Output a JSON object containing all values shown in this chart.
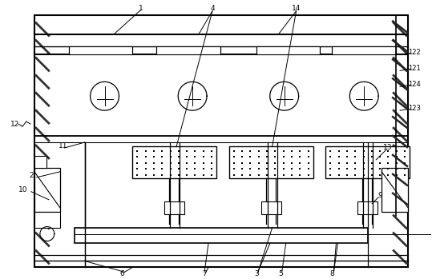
{
  "bg_color": "#ffffff",
  "lc": "#000000",
  "fig_width": 5.39,
  "fig_height": 3.49,
  "dpi": 100
}
